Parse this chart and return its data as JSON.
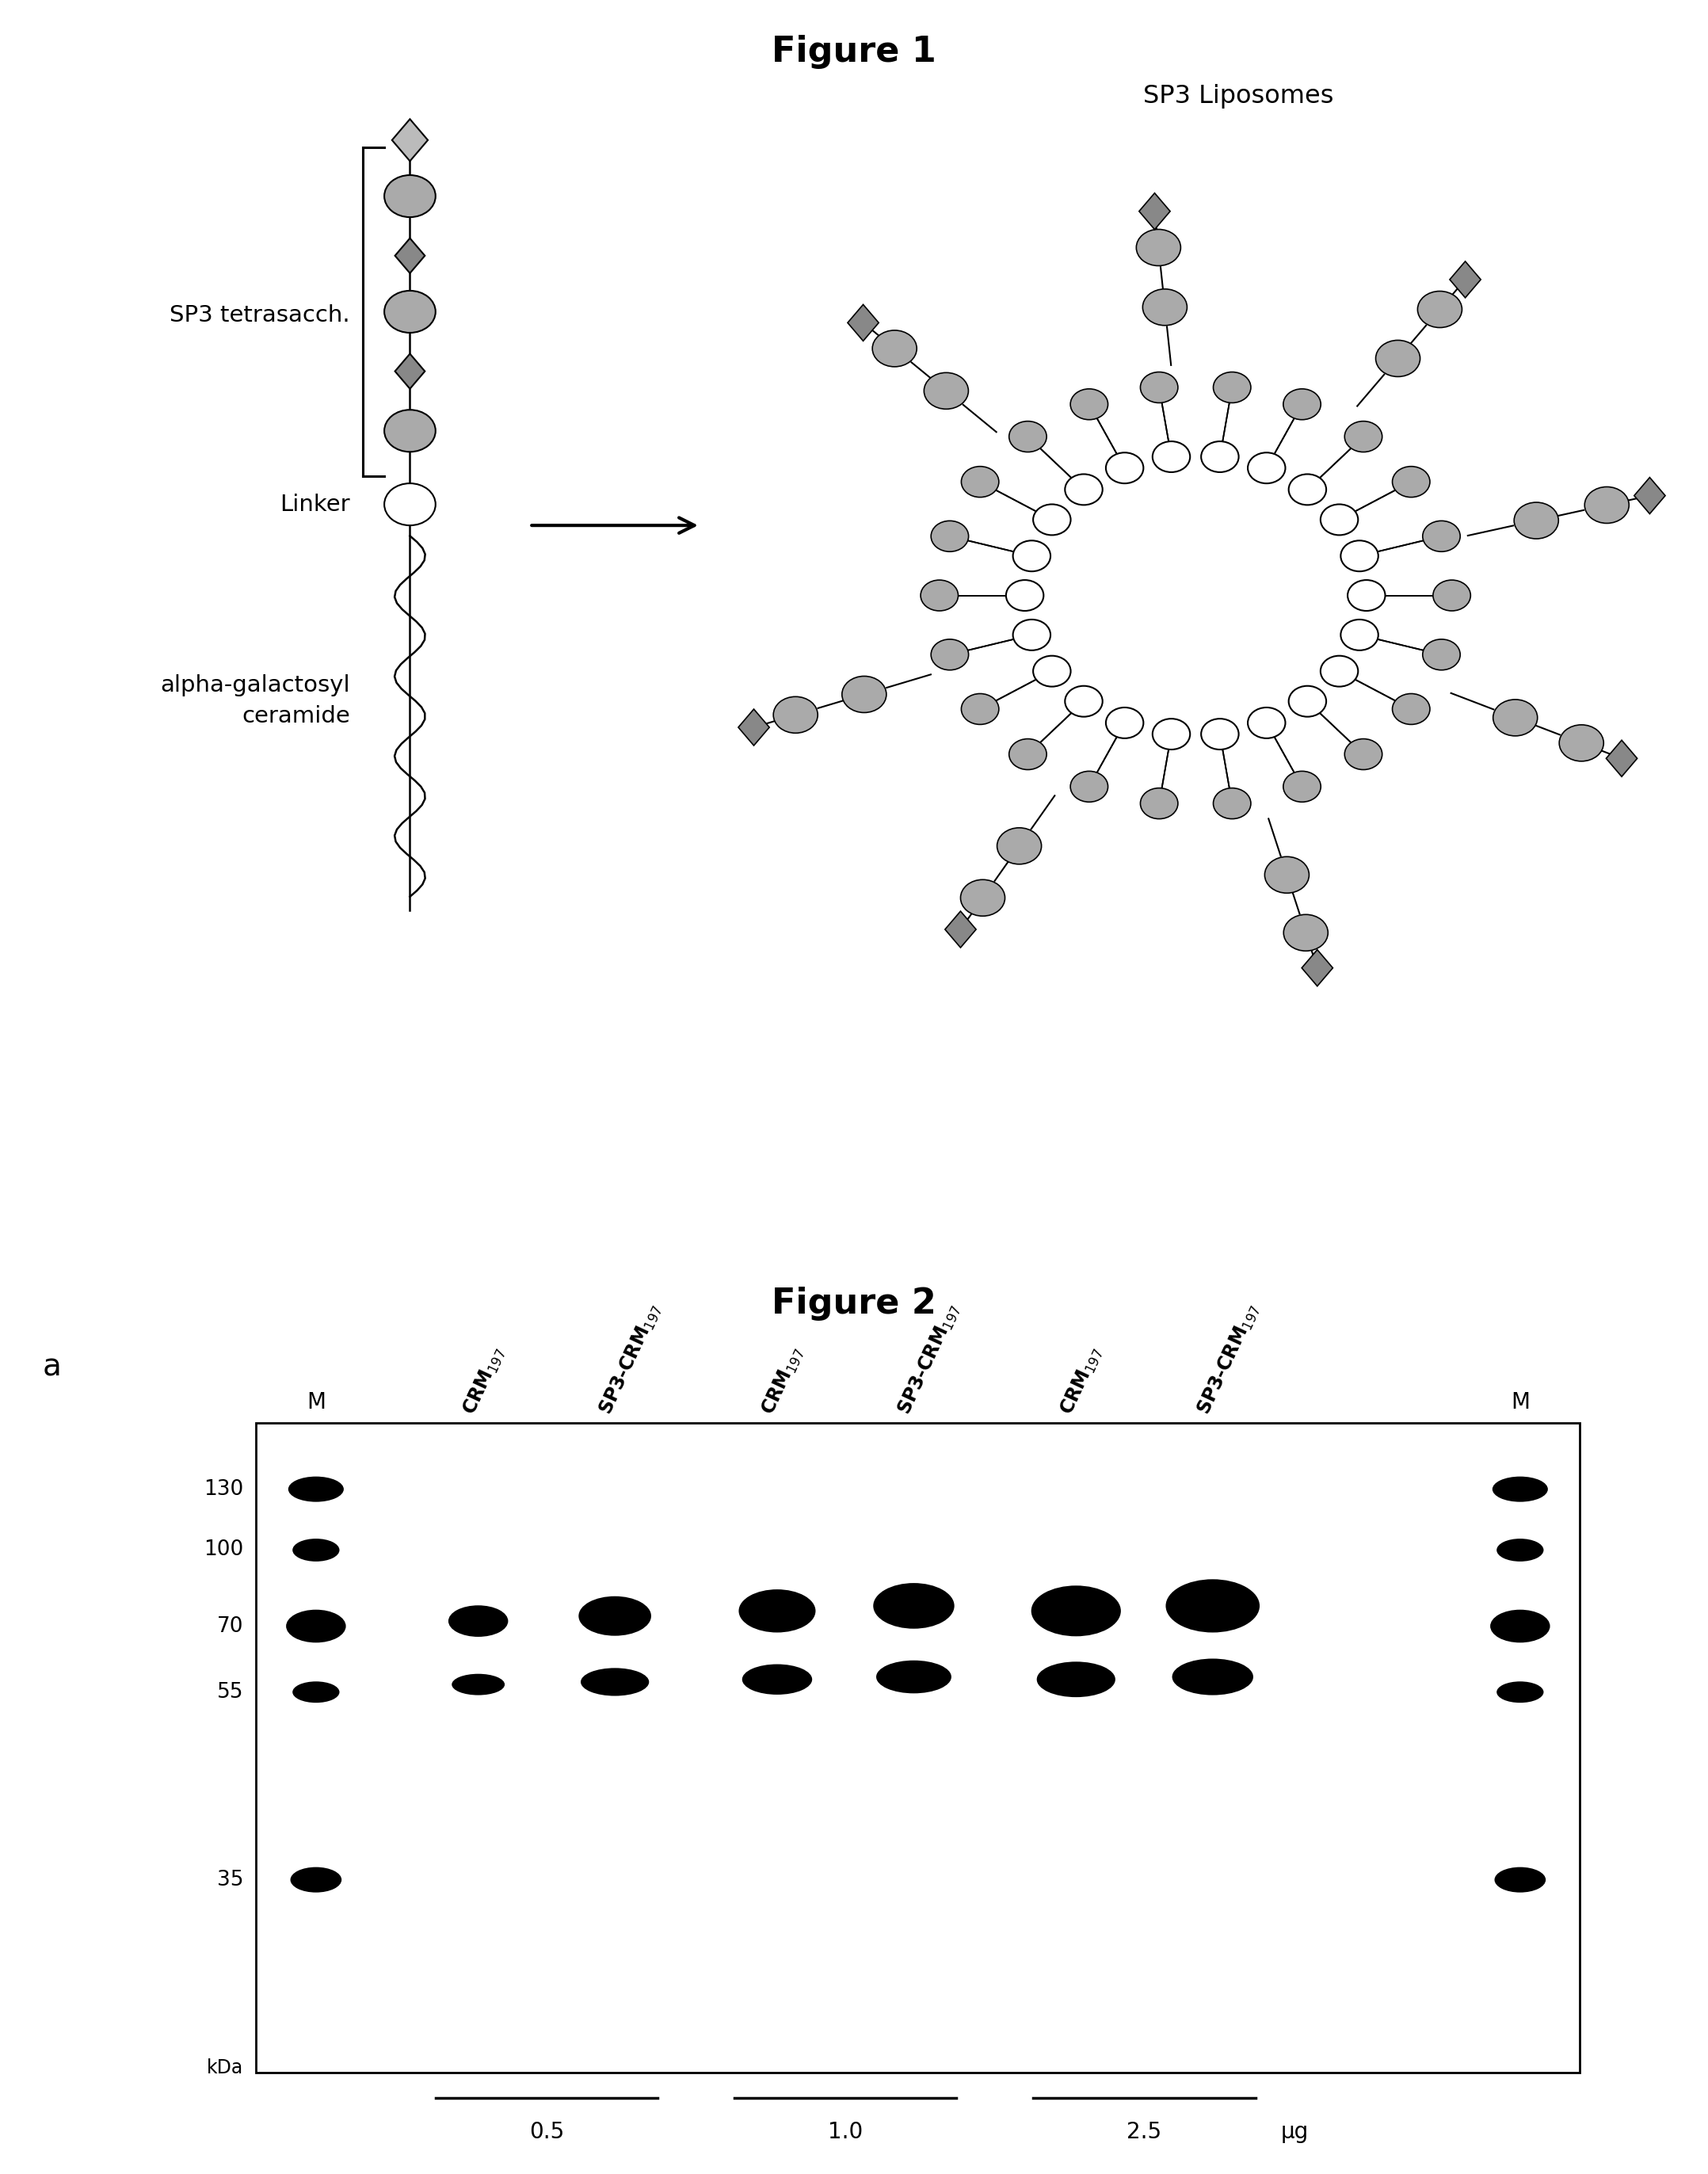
{
  "fig1_title": "Figure 1",
  "fig1_label_sp3": "SP3 tetrasacch.",
  "fig1_label_linker": "Linker",
  "fig1_label_alpha": "alpha-galactosyl\nceramide",
  "fig1_label_liposome": "SP3 Liposomes",
  "fig2_title": "Figure 2",
  "fig2_label_a": "a",
  "fig2_lane_labels": [
    "M",
    "CRM$_{197}$",
    "SP3-CRM$_{197}$",
    "CRM$_{197}$",
    "SP3-CRM$_{197}$",
    "CRM$_{197}$",
    "SP3-CRM$_{197}$",
    "M"
  ],
  "fig2_mw_labels": [
    "130",
    "100",
    "70",
    "55",
    "35"
  ],
  "fig2_conc_labels": [
    "0.5",
    "1.0",
    "2.5",
    "μg"
  ],
  "background": "#ffffff",
  "gray_fill": "#aaaaaa",
  "dark_gray": "#666666",
  "mid_gray": "#888888"
}
